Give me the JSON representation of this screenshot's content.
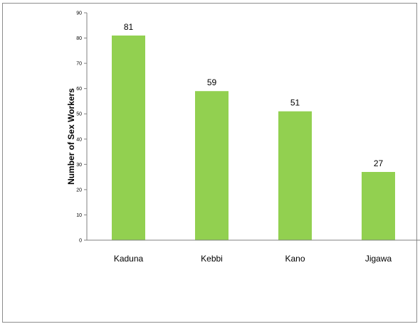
{
  "chart_data": {
    "type": "bar",
    "categories": [
      "Kaduna",
      "Kebbi",
      "Kano",
      "Jigawa"
    ],
    "values": [
      81,
      59,
      51,
      27
    ],
    "data_labels": [
      "81",
      "59",
      "51",
      "27"
    ],
    "title": "",
    "xlabel": "",
    "ylabel": "Number of Sex Workers",
    "ylim": [
      0,
      90
    ],
    "yticks": [
      "0",
      "10",
      "20",
      "30",
      "40",
      "50",
      "60",
      "70",
      "80",
      "90"
    ],
    "ytick_values": [
      0,
      10,
      20,
      30,
      40,
      50,
      60,
      70,
      80,
      90
    ],
    "bar_color": "#92d050",
    "grid": false,
    "legend": "none"
  }
}
